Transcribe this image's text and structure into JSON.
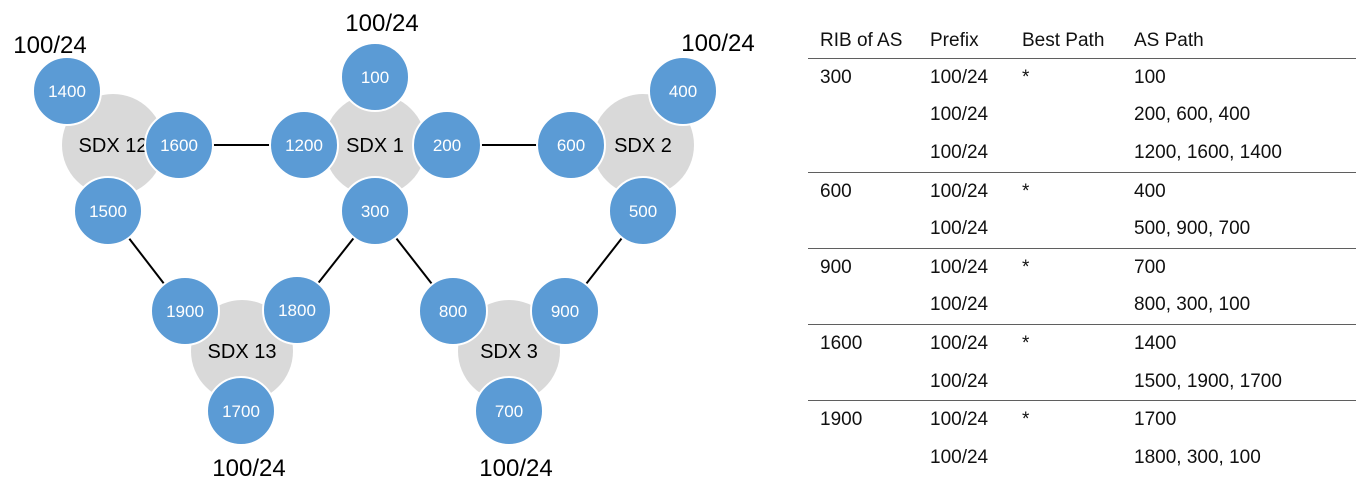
{
  "diagram": {
    "sdx_nodes": [
      {
        "id": "sdx12",
        "label": "SDX 12"
      },
      {
        "id": "sdx1",
        "label": "SDX 1"
      },
      {
        "id": "sdx2",
        "label": "SDX 2"
      },
      {
        "id": "sdx13",
        "label": "SDX 13"
      },
      {
        "id": "sdx3",
        "label": "SDX 3"
      }
    ],
    "as_nodes": [
      {
        "id": "as1400",
        "label": "1400"
      },
      {
        "id": "as1600",
        "label": "1600"
      },
      {
        "id": "as1500",
        "label": "1500"
      },
      {
        "id": "as100",
        "label": "100"
      },
      {
        "id": "as1200",
        "label": "1200"
      },
      {
        "id": "as200",
        "label": "200"
      },
      {
        "id": "as300",
        "label": "300"
      },
      {
        "id": "as400",
        "label": "400"
      },
      {
        "id": "as600",
        "label": "600"
      },
      {
        "id": "as500",
        "label": "500"
      },
      {
        "id": "as1900",
        "label": "1900"
      },
      {
        "id": "as1800",
        "label": "1800"
      },
      {
        "id": "as1700",
        "label": "1700"
      },
      {
        "id": "as800",
        "label": "800"
      },
      {
        "id": "as900",
        "label": "900"
      },
      {
        "id": "as700",
        "label": "700"
      }
    ],
    "prefix_labels": [
      {
        "id": "p1400",
        "text": "100/24"
      },
      {
        "id": "p100",
        "text": "100/24"
      },
      {
        "id": "p400",
        "text": "100/24"
      },
      {
        "id": "p1700",
        "text": "100/24"
      },
      {
        "id": "p700",
        "text": "100/24"
      }
    ],
    "links": [
      [
        "as1600",
        "as1200"
      ],
      [
        "as200",
        "as600"
      ],
      [
        "as1500",
        "as1900"
      ],
      [
        "as300",
        "as1800"
      ],
      [
        "as300",
        "as800"
      ],
      [
        "as500",
        "as900"
      ]
    ],
    "colors": {
      "as_fill": "#5b9bd5",
      "as_stroke": "#ffffff",
      "sdx_fill": "#d9d9d9",
      "link": "#000000",
      "as_text": "#ffffff",
      "sdx_text": "#000000"
    }
  },
  "table": {
    "headers": [
      "RIB of AS",
      "Prefix",
      "Best Path",
      "AS Path"
    ],
    "groups": [
      {
        "as": "300",
        "rows": [
          {
            "prefix": "100/24",
            "best": "*",
            "path": "100"
          },
          {
            "prefix": "100/24",
            "best": "",
            "path": "200, 600, 400"
          },
          {
            "prefix": "100/24",
            "best": "",
            "path": "1200, 1600, 1400"
          }
        ]
      },
      {
        "as": "600",
        "rows": [
          {
            "prefix": "100/24",
            "best": "*",
            "path": "400"
          },
          {
            "prefix": "100/24",
            "best": "",
            "path": "500, 900, 700"
          }
        ]
      },
      {
        "as": "900",
        "rows": [
          {
            "prefix": "100/24",
            "best": "*",
            "path": "700"
          },
          {
            "prefix": "100/24",
            "best": "",
            "path": "800, 300, 100"
          }
        ]
      },
      {
        "as": "1600",
        "rows": [
          {
            "prefix": "100/24",
            "best": "*",
            "path": "1400"
          },
          {
            "prefix": "100/24",
            "best": "",
            "path": "1500, 1900, 1700"
          }
        ]
      },
      {
        "as": "1900",
        "rows": [
          {
            "prefix": "100/24",
            "best": "*",
            "path": "1700"
          },
          {
            "prefix": "100/24",
            "best": "",
            "path": "1800, 300, 100"
          }
        ]
      }
    ]
  }
}
